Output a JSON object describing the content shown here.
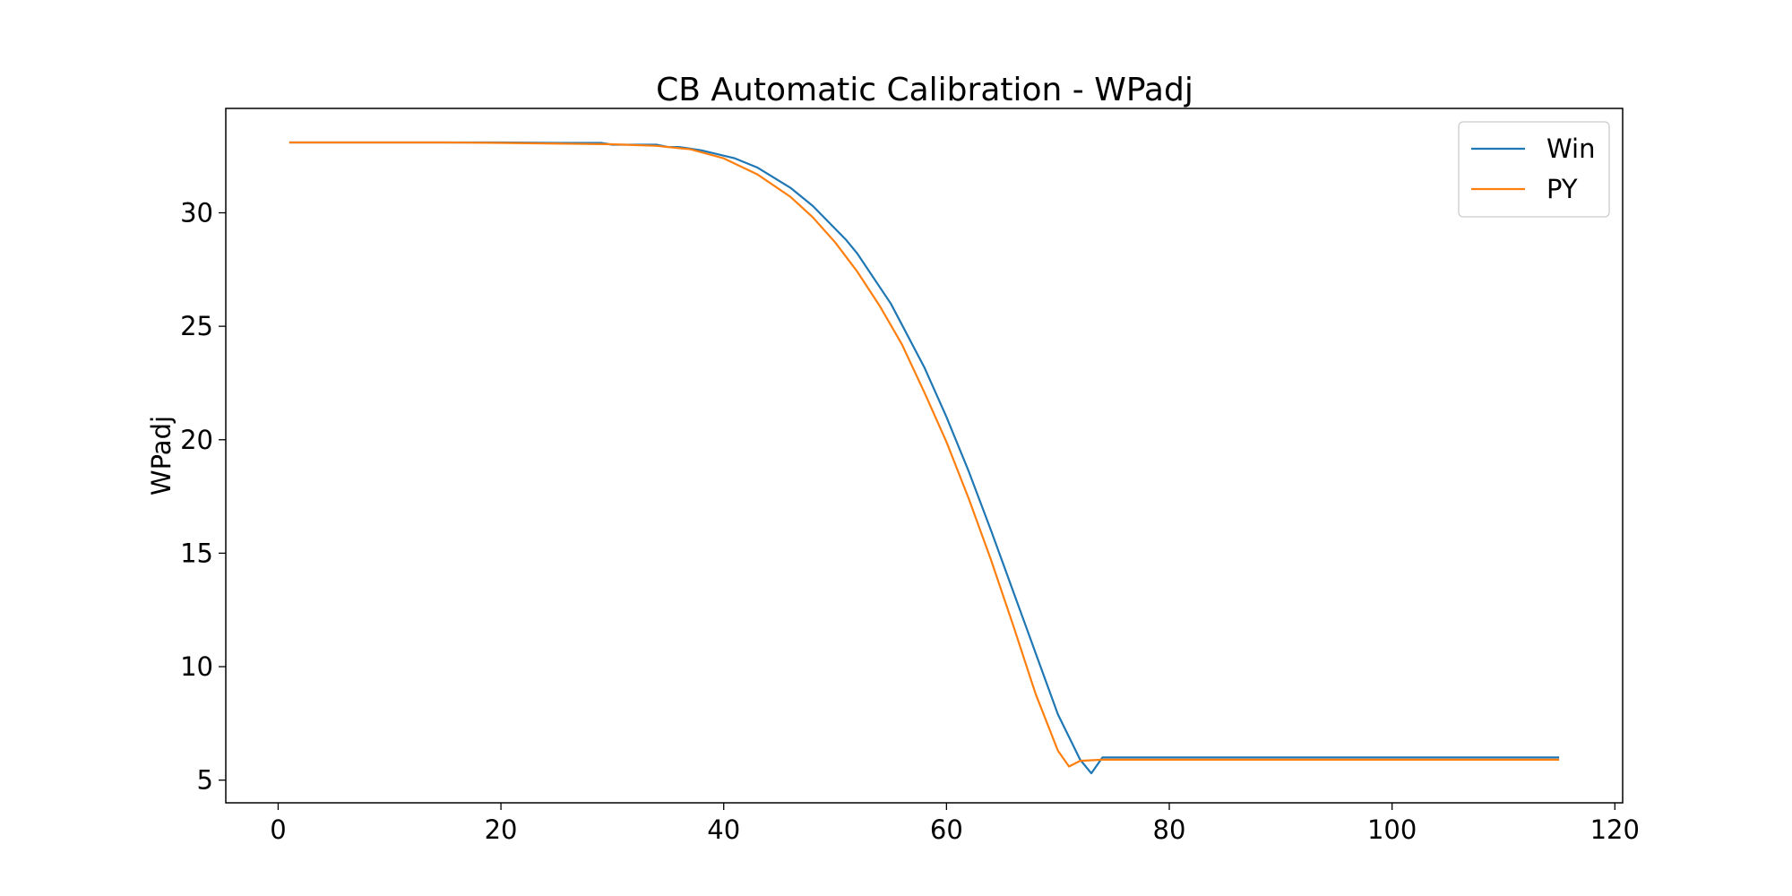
{
  "chart_data": {
    "type": "line",
    "title": "CB Automatic Calibration - WPadj",
    "xlabel": "",
    "ylabel": "WPadj",
    "xlim": [
      -4.7,
      120.7
    ],
    "ylim": [
      4.0,
      34.6
    ],
    "xticks": [
      0,
      20,
      40,
      60,
      80,
      100,
      120
    ],
    "yticks": [
      5,
      10,
      15,
      20,
      25,
      30
    ],
    "grid": false,
    "legend_position": "top-right",
    "series": [
      {
        "name": "Win",
        "color": "#1f77b4",
        "points": [
          [
            1,
            33.1
          ],
          [
            5,
            33.1
          ],
          [
            10,
            33.1
          ],
          [
            15,
            33.1
          ],
          [
            20,
            33.1
          ],
          [
            25,
            33.08
          ],
          [
            29,
            33.08
          ],
          [
            30,
            33.0
          ],
          [
            34,
            33.0
          ],
          [
            35,
            32.9
          ],
          [
            36,
            32.9
          ],
          [
            38,
            32.75
          ],
          [
            41,
            32.4
          ],
          [
            43,
            32.0
          ],
          [
            46,
            31.1
          ],
          [
            48,
            30.3
          ],
          [
            51,
            28.8
          ],
          [
            52,
            28.2
          ],
          [
            55,
            26.0
          ],
          [
            58,
            23.2
          ],
          [
            60,
            21.0
          ],
          [
            62,
            18.6
          ],
          [
            64,
            16.0
          ],
          [
            66,
            13.3
          ],
          [
            68,
            10.6
          ],
          [
            70,
            7.9
          ],
          [
            72,
            5.9
          ],
          [
            73,
            5.3
          ],
          [
            74,
            6.0
          ],
          [
            80,
            6.0
          ],
          [
            90,
            6.0
          ],
          [
            100,
            6.0
          ],
          [
            110,
            6.0
          ],
          [
            115,
            6.0
          ]
        ]
      },
      {
        "name": "PY",
        "color": "#ff7f0e",
        "points": [
          [
            1,
            33.1
          ],
          [
            5,
            33.1
          ],
          [
            10,
            33.1
          ],
          [
            15,
            33.1
          ],
          [
            20,
            33.08
          ],
          [
            25,
            33.05
          ],
          [
            30,
            33.02
          ],
          [
            34,
            32.95
          ],
          [
            37,
            32.8
          ],
          [
            40,
            32.4
          ],
          [
            43,
            31.7
          ],
          [
            46,
            30.7
          ],
          [
            48,
            29.8
          ],
          [
            50,
            28.7
          ],
          [
            52,
            27.4
          ],
          [
            54,
            25.9
          ],
          [
            56,
            24.2
          ],
          [
            58,
            22.1
          ],
          [
            60,
            19.9
          ],
          [
            62,
            17.4
          ],
          [
            64,
            14.7
          ],
          [
            66,
            11.8
          ],
          [
            68,
            8.8
          ],
          [
            70,
            6.3
          ],
          [
            71,
            5.6
          ],
          [
            72,
            5.85
          ],
          [
            74,
            5.9
          ],
          [
            80,
            5.9
          ],
          [
            90,
            5.9
          ],
          [
            100,
            5.9
          ],
          [
            110,
            5.9
          ],
          [
            115,
            5.9
          ]
        ]
      }
    ]
  }
}
